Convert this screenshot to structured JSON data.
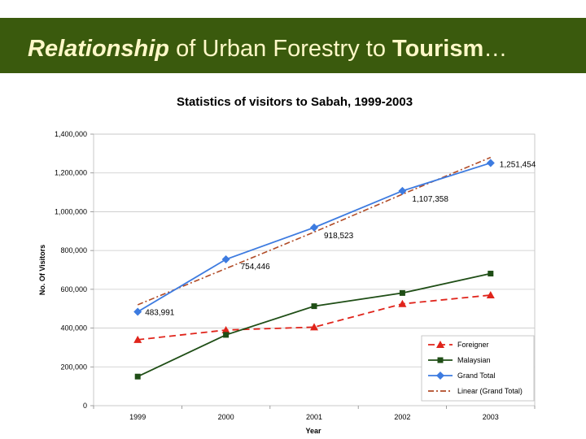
{
  "slide": {
    "title_part1": "Relationship",
    "title_part2": " of Urban Forestry to ",
    "title_part3": "Tourism",
    "title_part4": "…"
  },
  "colors": {
    "banner": "#3a5a0d",
    "banner_text": "#fff8c8"
  },
  "chart_data": {
    "type": "line",
    "title": "Statistics of visitors to Sabah, 1999-2003",
    "xlabel": "Year",
    "ylabel": "No. Of Visitors",
    "categories": [
      "1999",
      "2000",
      "2001",
      "2002",
      "2003"
    ],
    "ylim": [
      0,
      1400000
    ],
    "yticks": [
      0,
      200000,
      400000,
      600000,
      800000,
      1000000,
      1200000,
      1400000
    ],
    "ytick_labels": [
      "0",
      "200,000",
      "400,000",
      "600,000",
      "800,000",
      "1,000,000",
      "1,200,000",
      "1,400,000"
    ],
    "grid": true,
    "legend_position": "bottom-right",
    "series": [
      {
        "name": "Foreigner",
        "values": [
          340000,
          390000,
          405000,
          525000,
          570000
        ],
        "color": "#e0241b",
        "marker": "triangle",
        "dash": "8,5"
      },
      {
        "name": "Malaysian",
        "values": [
          150000,
          365000,
          513000,
          581000,
          681000
        ],
        "color": "#1f4e16",
        "marker": "square",
        "dash": ""
      },
      {
        "name": "Grand Total",
        "values": [
          483991,
          754446,
          918523,
          1107358,
          1251454
        ],
        "color": "#3d7be0",
        "marker": "diamond",
        "dash": "",
        "labels": [
          "483,991",
          "754,446",
          "918,523",
          "1,107,358",
          "1,251,454"
        ]
      },
      {
        "name": "Linear (Grand Total)",
        "values": [
          520000,
          707000,
          895000,
          1090000,
          1280000
        ],
        "color": "#b04a25",
        "marker": "none",
        "dash": "7,3,2,3"
      }
    ]
  }
}
